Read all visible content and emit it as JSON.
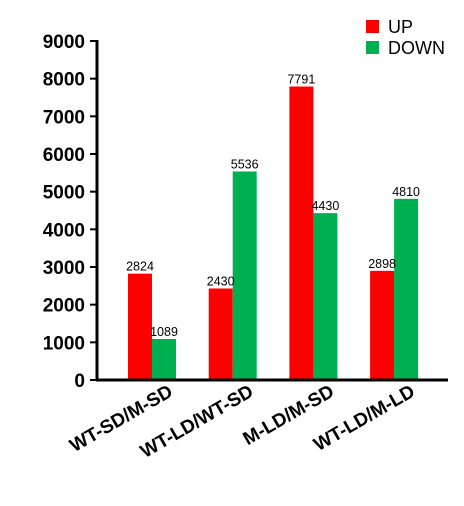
{
  "chart_data": {
    "type": "bar",
    "categories": [
      "WT-SD/M-SD",
      "WT-LD/WT-SD",
      "M-LD/M-SD",
      "WT-LD/M-LD"
    ],
    "series": [
      {
        "name": "UP",
        "values": [
          2824,
          2430,
          7791,
          2898
        ],
        "color": "#ff0000"
      },
      {
        "name": "DOWN",
        "values": [
          1089,
          5536,
          4430,
          4810
        ],
        "color": "#00b050"
      }
    ],
    "title": "",
    "xlabel": "",
    "ylabel": "",
    "ylim": [
      0,
      9000
    ],
    "yticks": [
      0,
      1000,
      2000,
      3000,
      4000,
      5000,
      6000,
      7000,
      8000,
      9000
    ],
    "grid": false,
    "legend": "top-right",
    "data_labels": true
  }
}
